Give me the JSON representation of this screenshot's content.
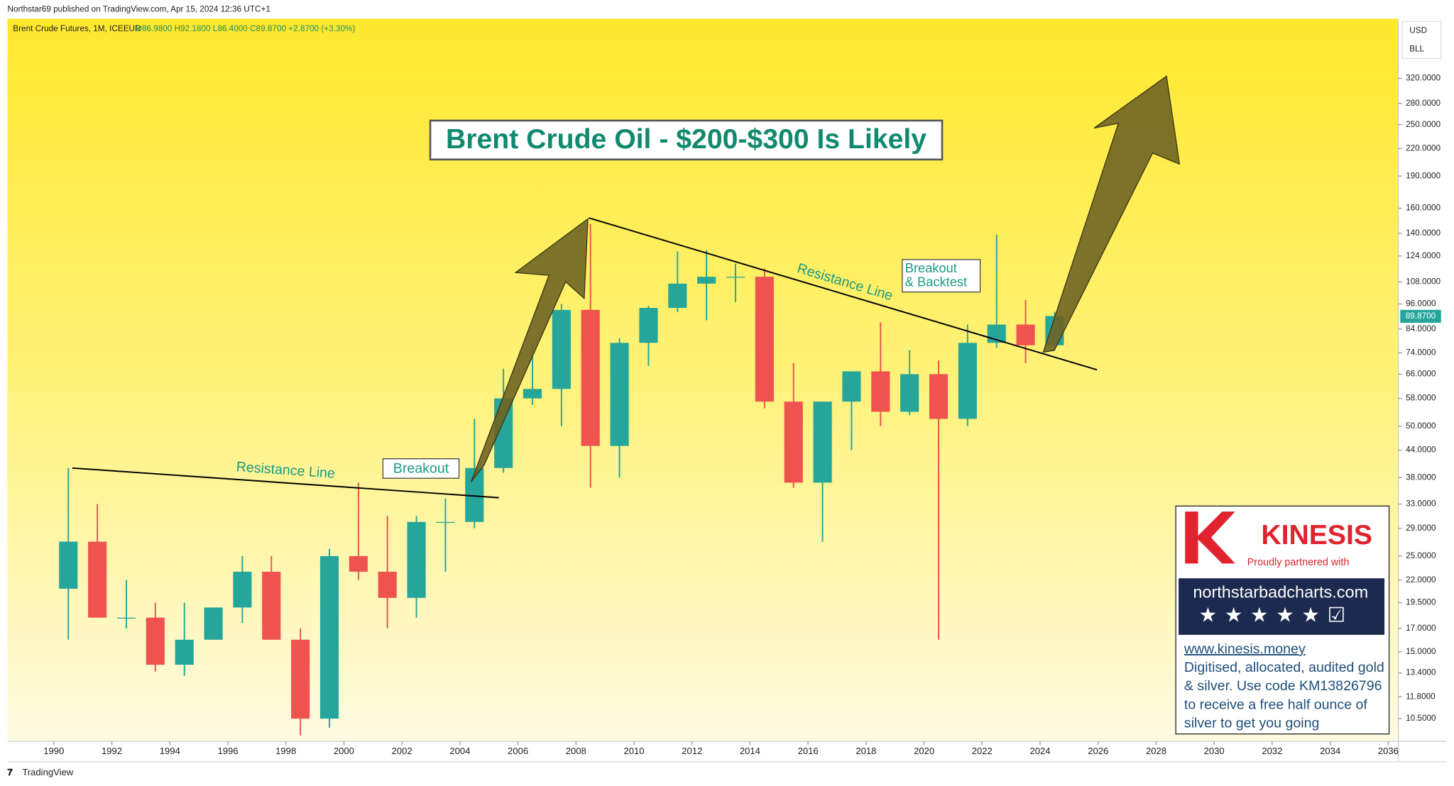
{
  "header": "Northstar69 published on TradingView.com, Apr 15, 2024 12:36 UTC+1",
  "legend": {
    "symbol": "Brent Crude Futures, 1M, ICEEUR",
    "ohlc": "O86.9800 H92.1800 L86.4000 C89.8700 +2.8700 (+3.30%)"
  },
  "currency": "USD",
  "unit": "BLL",
  "footer": "TradingView",
  "annotations": {
    "title": "Brent Crude Oil - $200-$300 Is Likely",
    "resistance_1": "Resistance Line",
    "breakout": "Breakout",
    "resistance_2": "Resistance Line",
    "breakout_backtest": [
      "Breakout",
      "& Backtest"
    ]
  },
  "ad": {
    "brand": "KINESIS",
    "tagline": "Proudly partnered with",
    "site": "northstarbadcharts.com",
    "url": "www.kinesis.money",
    "lines": [
      "Digitised, allocated, audited gold",
      "& silver. Use code KM13826796",
      "to receive a free half ounce of",
      "silver to get you going"
    ]
  },
  "chart_data": {
    "type": "candlestick",
    "log_scale": true,
    "up_color": "#26a69a",
    "down_color": "#ef5350",
    "x": [
      1990,
      1991,
      1992,
      1993,
      1994,
      1995,
      1996,
      1997,
      1998,
      1999,
      2000,
      2001,
      2002,
      2003,
      2004,
      2005,
      2006,
      2007,
      2008,
      2009,
      2010,
      2011,
      2012,
      2013,
      2014,
      2015,
      2016,
      2017,
      2018,
      2019,
      2020,
      2021,
      2022,
      2023,
      2024
    ],
    "open": [
      21,
      27,
      18,
      18,
      14,
      16,
      19,
      23,
      16,
      10.5,
      25,
      23,
      20,
      30,
      30,
      40,
      58,
      61,
      93,
      45,
      78,
      94,
      107,
      111,
      111,
      57,
      37,
      57,
      67,
      54,
      66,
      52,
      78,
      86,
      77
    ],
    "high": [
      40,
      33,
      22,
      19.5,
      19.5,
      19,
      25,
      25,
      17,
      26,
      37,
      31,
      31,
      34,
      52,
      68,
      78,
      96,
      147,
      80,
      95,
      127,
      128,
      119,
      116,
      70,
      57,
      67,
      87,
      75,
      71,
      86,
      139,
      98,
      92
    ],
    "low": [
      16,
      18,
      17,
      13.5,
      13.2,
      16,
      17.5,
      17,
      9.6,
      10,
      22,
      17,
      18,
      23,
      29,
      39,
      56,
      50,
      36,
      38,
      69,
      92,
      88,
      97,
      55,
      36,
      27,
      44,
      50,
      53,
      16,
      50,
      76,
      70,
      75
    ],
    "close": [
      27,
      18,
      18,
      14,
      16,
      19,
      23,
      16,
      10.5,
      25,
      23,
      20,
      30,
      30,
      40,
      58,
      61,
      93,
      45,
      78,
      94,
      107,
      111,
      111,
      57,
      37,
      57,
      67,
      54,
      66,
      52,
      78,
      86,
      77,
      90
    ],
    "xlim": [
      1988.4,
      2036.35
    ],
    "xticks": [
      1990,
      1992,
      1994,
      1996,
      1998,
      2000,
      2002,
      2004,
      2006,
      2008,
      2010,
      2012,
      2014,
      2016,
      2018,
      2020,
      2022,
      2024,
      2026,
      2028,
      2030,
      2032,
      2034,
      2036
    ],
    "ylim": [
      9.3,
      440
    ],
    "yticks": [
      {
        "value": 10.5,
        "label": "10.5000"
      },
      {
        "value": 11.8,
        "label": "11.8000"
      },
      {
        "value": 13.4,
        "label": "13.4000"
      },
      {
        "value": 15,
        "label": "15.0000"
      },
      {
        "value": 17,
        "label": "17.0000"
      },
      {
        "value": 19.5,
        "label": "19.5000"
      },
      {
        "value": 22,
        "label": "22.0000"
      },
      {
        "value": 25,
        "label": "25.0000"
      },
      {
        "value": 29,
        "label": "29.0000"
      },
      {
        "value": 33,
        "label": "33.0000"
      },
      {
        "value": 38,
        "label": "38.0000"
      },
      {
        "value": 44,
        "label": "44.0000"
      },
      {
        "value": 50,
        "label": "50.0000"
      },
      {
        "value": 58,
        "label": "58.0000"
      },
      {
        "value": 66,
        "label": "66.0000"
      },
      {
        "value": 74,
        "label": "74.0000"
      },
      {
        "value": 84,
        "label": "84.0000"
      },
      {
        "value": 96,
        "label": "96.0000"
      },
      {
        "value": 108,
        "label": "108.0000"
      },
      {
        "value": 124,
        "label": "124.0000"
      },
      {
        "value": 140,
        "label": "140.0000"
      },
      {
        "value": 160,
        "label": "160.0000"
      },
      {
        "value": 190,
        "label": "190.0000"
      },
      {
        "value": 220,
        "label": "220.0000"
      },
      {
        "value": 250,
        "label": "250.0000"
      },
      {
        "value": 280,
        "label": "280.0000"
      },
      {
        "value": 320,
        "label": "320.0000"
      }
    ],
    "last_price": {
      "value": 89.87,
      "label": "89.8700"
    }
  }
}
